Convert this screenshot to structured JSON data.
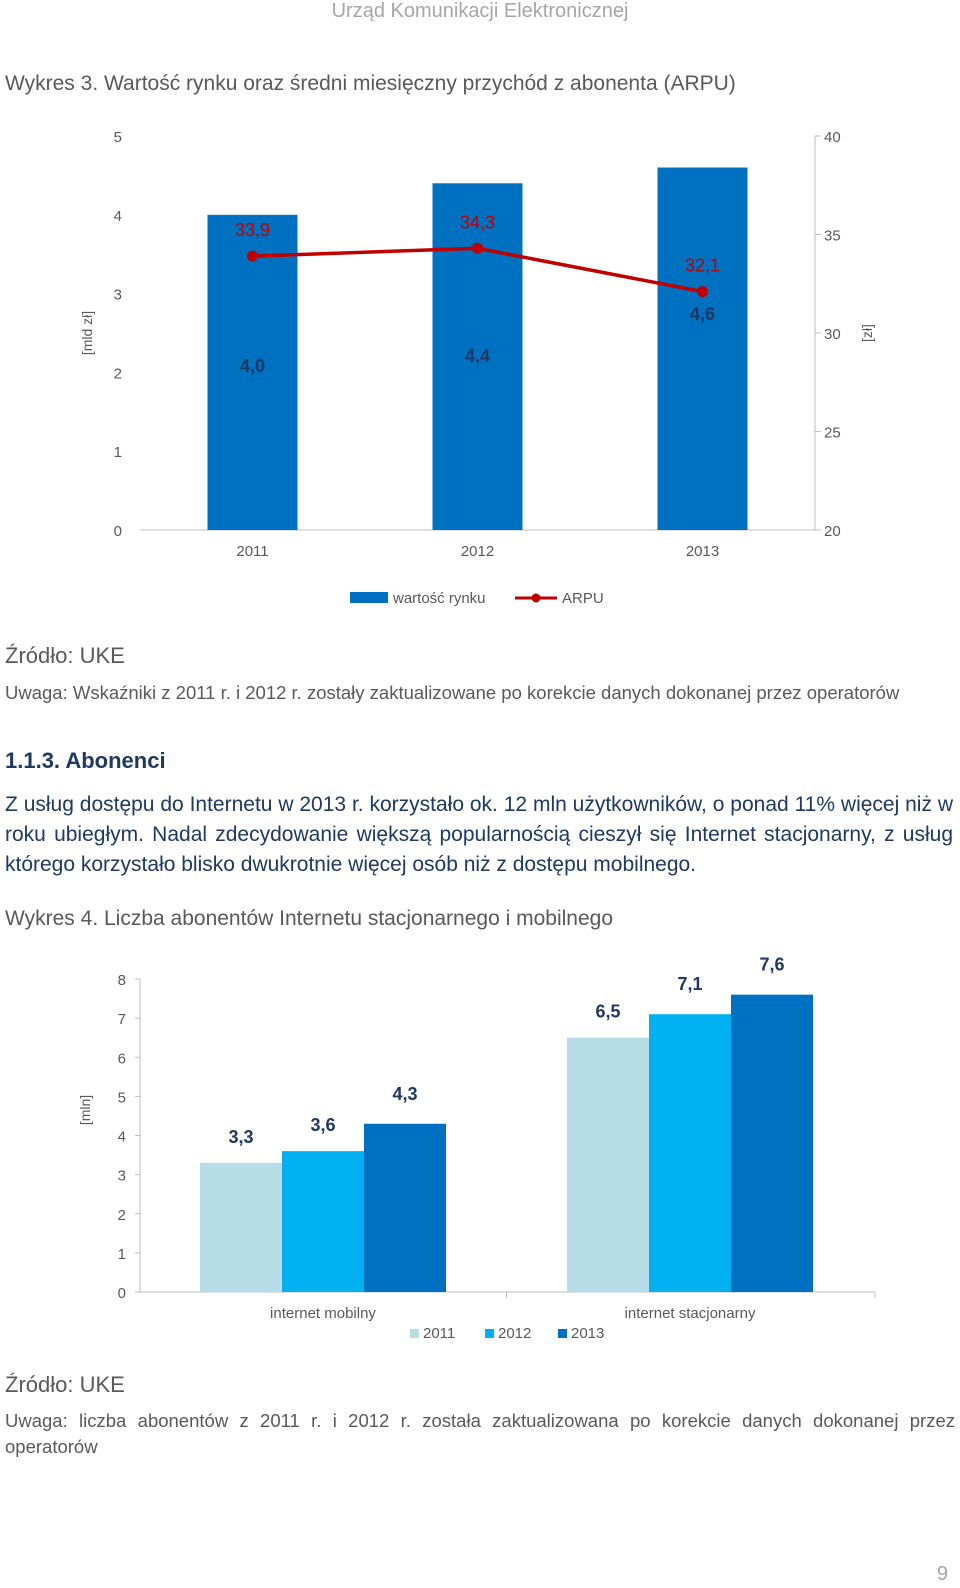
{
  "header": "Urząd Komunikacji Elektronicznej",
  "chart1": {
    "caption": "Wykres 3. Wartość rynku oraz średni miesięczny przychód z abonenta (ARPU)",
    "chart_data": {
      "type": "bar",
      "categories": [
        "2011",
        "2012",
        "2013"
      ],
      "series": [
        {
          "name": "wartość rynku",
          "values": [
            4.0,
            4.4,
            4.6
          ],
          "axis": "left",
          "color": "#0070c0"
        },
        {
          "name": "ARPU",
          "values": [
            33.9,
            34.3,
            32.1
          ],
          "axis": "right",
          "type": "line",
          "color": "#c00000"
        }
      ],
      "value_labels_left": [
        "4,0",
        "4,4",
        "4,6"
      ],
      "value_labels_right": [
        "33,9",
        "34,3",
        "32,1"
      ],
      "ylabel": "[mld zł]",
      "ylabel2": "[zł]",
      "ylim": [
        0,
        5
      ],
      "ylim2": [
        20,
        40
      ],
      "yticks": [
        "0",
        "1",
        "2",
        "3",
        "4",
        "5"
      ],
      "yticks2": [
        "20",
        "25",
        "30",
        "35",
        "40"
      ],
      "legend": "bottom"
    }
  },
  "source1": "Źródło: UKE",
  "note1": "Uwaga: Wskaźniki z 2011 r. i 2012 r. zostały zaktualizowane po korekcie danych dokonanej przez operatorów",
  "section_title": "1.1.3. Abonenci",
  "paragraph": "Z usług dostępu do Internetu w 2013 r. korzystało ok. 12 mln użytkowników, o ponad 11% więcej niż w roku ubiegłym. Nadal zdecydowanie większą popularnością cieszył się Internet stacjonarny, z usług którego korzystało blisko dwukrotnie więcej osób niż z dostępu mobilnego.",
  "chart2": {
    "caption": "Wykres 4. Liczba abonentów Internetu stacjonarnego i mobilnego",
    "chart_data": {
      "type": "bar",
      "categories": [
        "internet mobilny",
        "internet stacjonarny"
      ],
      "series": [
        {
          "name": "2011",
          "values": [
            3.3,
            6.5
          ],
          "labels": [
            "3,3",
            "6,5"
          ],
          "color": "#b7dde8"
        },
        {
          "name": "2012",
          "values": [
            3.6,
            7.1
          ],
          "labels": [
            "3,6",
            "7,1"
          ],
          "color": "#00b0f0"
        },
        {
          "name": "2013",
          "values": [
            4.3,
            7.6
          ],
          "labels": [
            "4,3",
            "7,6"
          ],
          "color": "#0070c0"
        }
      ],
      "ylabel": "[mln]",
      "ylim": [
        0,
        8
      ],
      "yticks": [
        "0",
        "1",
        "2",
        "3",
        "4",
        "5",
        "6",
        "7",
        "8"
      ],
      "legend": "bottom"
    }
  },
  "source2": "Źródło: UKE",
  "note2": "Uwaga: liczba abonentów z 2011 r. i 2012 r. została zaktualizowana po korekcie danych dokonanej przez operatorów",
  "page_number": "9"
}
